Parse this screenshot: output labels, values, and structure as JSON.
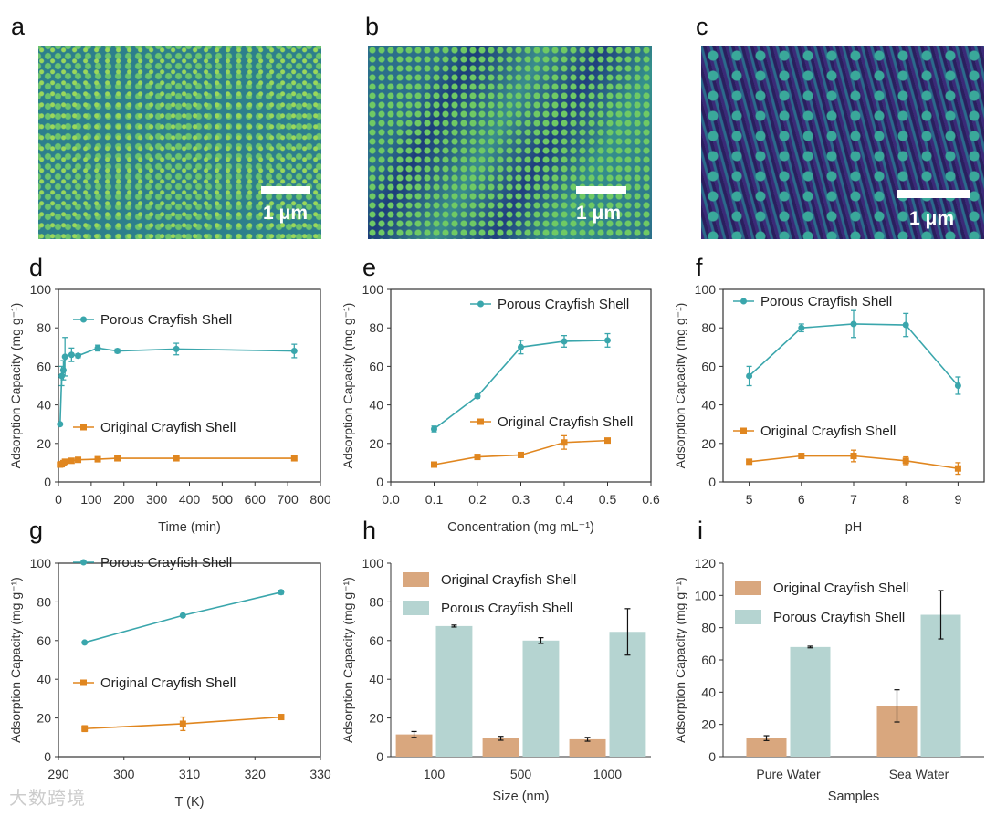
{
  "panel_letters": [
    "a",
    "b",
    "c",
    "d",
    "e",
    "f",
    "g",
    "h",
    "i"
  ],
  "sem_images": [
    {
      "panel": "a",
      "scale_label": "1 μm"
    },
    {
      "panel": "b",
      "scale_label": "1 μm"
    },
    {
      "panel": "c",
      "scale_label": "1 μm"
    }
  ],
  "watermark": "大数跨境",
  "colors": {
    "porous": "#3aa6ac",
    "original": "#e0861f",
    "bar_original": "#d9a77e",
    "bar_porous": "#b5d4d1"
  },
  "chart_data": [
    {
      "panel": "d",
      "type": "line",
      "xlabel": "Time (min)",
      "ylabel": "Adsorption Capacity (mg g⁻¹)",
      "xlim": [
        0,
        800
      ],
      "ylim": [
        0,
        100
      ],
      "xticks": [
        0,
        100,
        200,
        300,
        400,
        500,
        600,
        700,
        800
      ],
      "yticks": [
        0,
        20,
        40,
        60,
        80,
        100
      ],
      "series": [
        {
          "name": "Porous Crayfish Shell",
          "key": "porous",
          "x": [
            5,
            10,
            15,
            20,
            40,
            60,
            120,
            180,
            360,
            720
          ],
          "y": [
            30,
            55,
            58,
            65,
            66,
            65.5,
            69.5,
            68,
            69,
            68
          ],
          "err": [
            0,
            5,
            5,
            10,
            3.5,
            1,
            1.5,
            1,
            3,
            3.5
          ]
        },
        {
          "name": "Original Crayfish Shell",
          "key": "original",
          "x": [
            5,
            10,
            15,
            20,
            40,
            60,
            120,
            180,
            360,
            720
          ],
          "y": [
            9,
            9.2,
            9.8,
            10.5,
            11,
            11.5,
            11.8,
            12.3,
            12.3,
            12.3
          ],
          "err": [
            0,
            0,
            0,
            0,
            0,
            0,
            0,
            0,
            0,
            0
          ]
        }
      ]
    },
    {
      "panel": "e",
      "type": "line",
      "xlabel": "Concentration (mg mL⁻¹)",
      "ylabel": "Adsorption Capacity (mg g⁻¹)",
      "xlim": [
        0,
        0.6
      ],
      "ylim": [
        0,
        100
      ],
      "xticks": [
        "0.0",
        "0.1",
        "0.2",
        "0.3",
        "0.4",
        "0.5",
        "0.6"
      ],
      "yticks": [
        0,
        20,
        40,
        60,
        80,
        100
      ],
      "series": [
        {
          "name": "Porous Crayfish Shell",
          "key": "porous",
          "x": [
            0.1,
            0.2,
            0.3,
            0.4,
            0.5
          ],
          "y": [
            27.5,
            44.5,
            70,
            73,
            73.5
          ],
          "err": [
            1.5,
            1,
            3.5,
            3,
            3.5
          ]
        },
        {
          "name": "Original Crayfish Shell",
          "key": "original",
          "x": [
            0.1,
            0.2,
            0.3,
            0.4,
            0.5
          ],
          "y": [
            9,
            13,
            14,
            20.5,
            21.5
          ],
          "err": [
            0.5,
            0.5,
            0.5,
            3.5,
            0.5
          ]
        }
      ]
    },
    {
      "panel": "f",
      "type": "line",
      "xlabel": "pH",
      "ylabel": "Adsorption Capacity (mg g⁻¹)",
      "xlim": [
        4.5,
        9.5
      ],
      "ylim": [
        0,
        100
      ],
      "xticks": [
        5,
        6,
        7,
        8,
        9
      ],
      "yticks": [
        0,
        20,
        40,
        60,
        80,
        100
      ],
      "series": [
        {
          "name": "Porous Crayfish Shell",
          "key": "porous",
          "x": [
            5,
            6,
            7,
            8,
            9
          ],
          "y": [
            55,
            80,
            82,
            81.5,
            50
          ],
          "err": [
            5,
            2,
            7,
            6,
            4.5
          ]
        },
        {
          "name": "Original Crayfish Shell",
          "key": "original",
          "x": [
            5,
            6,
            7,
            8,
            9
          ],
          "y": [
            10.5,
            13.5,
            13.5,
            11,
            7
          ],
          "err": [
            0.5,
            0.5,
            3,
            2,
            3
          ]
        }
      ]
    },
    {
      "panel": "g",
      "type": "line",
      "xlabel": "T (K)",
      "ylabel": "Adsorption Capacity (mg g⁻¹)",
      "xlim": [
        290,
        330
      ],
      "ylim": [
        0,
        100
      ],
      "xticks": [
        290,
        300,
        310,
        320,
        330
      ],
      "yticks": [
        0,
        20,
        40,
        60,
        80,
        100
      ],
      "series": [
        {
          "name": "Porous Crayfish Shell",
          "key": "porous",
          "x": [
            294,
            309,
            324
          ],
          "y": [
            59,
            73,
            85
          ],
          "err": [
            0.5,
            0.5,
            1
          ]
        },
        {
          "name": "Original Crayfish Shell",
          "key": "original",
          "x": [
            294,
            309,
            324
          ],
          "y": [
            14.5,
            17,
            20.5
          ],
          "err": [
            1.5,
            3.5,
            0.5
          ]
        }
      ]
    },
    {
      "panel": "h",
      "type": "bar",
      "xlabel": "Size (nm)",
      "ylabel": "Adsorption Capacity (mg g⁻¹)",
      "ylim": [
        0,
        100
      ],
      "categories": [
        "100",
        "500",
        "1000"
      ],
      "yticks": [
        0,
        20,
        40,
        60,
        80,
        100
      ],
      "series": [
        {
          "name": "Original Crayfish Shell",
          "key": "bar_original",
          "values": [
            11.5,
            9.5,
            9
          ],
          "err": [
            1.5,
            1,
            1
          ]
        },
        {
          "name": "Porous Crayfish Shell",
          "key": "bar_porous",
          "values": [
            67.5,
            60,
            64.5
          ],
          "err": [
            0.5,
            1.5,
            12
          ]
        }
      ]
    },
    {
      "panel": "i",
      "type": "bar",
      "xlabel": "Samples",
      "ylabel": "Adsorption Capacity (mg g⁻¹)",
      "ylim": [
        0,
        120
      ],
      "categories": [
        "Pure Water",
        "Sea Water"
      ],
      "yticks": [
        0,
        20,
        40,
        60,
        80,
        100,
        120
      ],
      "series": [
        {
          "name": "Original Crayfish Shell",
          "key": "bar_original",
          "values": [
            11.5,
            31.5
          ],
          "err": [
            1.5,
            10
          ]
        },
        {
          "name": "Porous Crayfish Shell",
          "key": "bar_porous",
          "values": [
            68,
            88
          ],
          "err": [
            0.5,
            15
          ]
        }
      ]
    }
  ]
}
